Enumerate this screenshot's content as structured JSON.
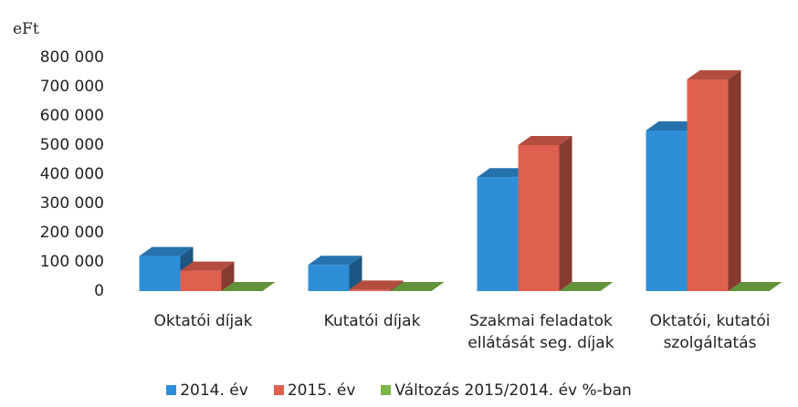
{
  "chart_data": {
    "type": "bar3d",
    "y_label": "eFt",
    "categories": [
      "Oktatói díjak",
      "Kutatói díjak",
      "Szakmai feladatok ellátását seg. díjak",
      "Oktatói, kutatói szolgáltatás"
    ],
    "series": [
      {
        "name": "2014. év",
        "color": "#2e8fd8",
        "values": [
          120000,
          90000,
          390000,
          550000
        ]
      },
      {
        "name": "2015. év",
        "color": "#e06050",
        "values": [
          70000,
          5000,
          500000,
          725000
        ]
      },
      {
        "name": "Változás 2015/2014. év  %-ban",
        "color": "#7ab648",
        "values": [
          0,
          0,
          0,
          0
        ]
      }
    ],
    "ylim": [
      0,
      800000
    ],
    "yticks": [
      0,
      {
        "value": 100000,
        "label": "100 000"
      },
      {
        "value": 200000,
        "label": "200 000"
      },
      {
        "value": 300000,
        "label": "300 000"
      },
      {
        "value": 400000,
        "label": "400 000"
      },
      {
        "value": 500000,
        "label": "500 000"
      },
      {
        "value": 600000,
        "label": "600 000"
      },
      {
        "value": 700000,
        "label": "700 000"
      },
      {
        "value": 800000,
        "label": "800 000"
      }
    ],
    "grid": false
  }
}
